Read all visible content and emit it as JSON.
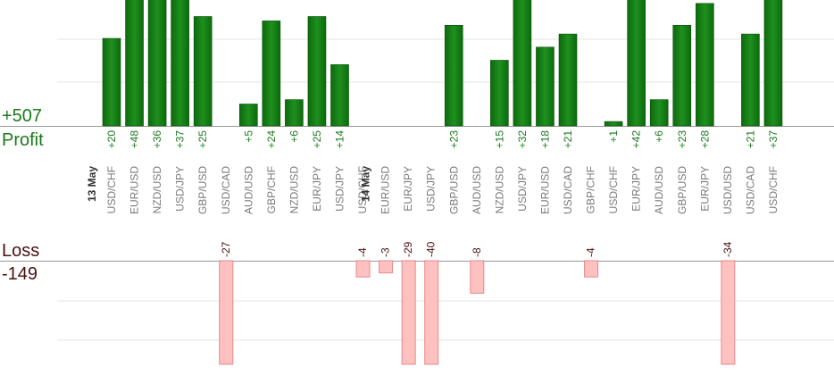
{
  "summary": {
    "profit_total": "+507",
    "profit_label": "Profit",
    "loss_label": "Loss",
    "loss_total": "-149"
  },
  "colors": {
    "profit_bar": "#0b6b0b",
    "profit_bar_light": "#1f8f1f",
    "profit_text": "#1a7a1a",
    "loss_bar": "#ffc0c0",
    "loss_bar_border": "#e58a8a",
    "loss_text": "#4a1010",
    "grid": "#e6e6e6",
    "axis": "#999999",
    "category_text": "#7a7a7a",
    "date_text": "#333333"
  },
  "chart_data": {
    "type": "bar",
    "date_markers": [
      {
        "label": "13 May",
        "before_index": 0
      },
      {
        "label": "14 May",
        "before_index": 12
      }
    ],
    "categories": [
      "USD/CHF",
      "EUR/USD",
      "NZD/USD",
      "USD/JPY",
      "GBP/USD",
      "USD/CAD",
      "AUD/USD",
      "GBP/CHF",
      "NZD/USD",
      "EUR/JPY",
      "USD/JPY",
      "USD/CHF",
      "EUR/USD",
      "EUR/JPY",
      "USD/JPY",
      "GBP/USD",
      "AUD/USD",
      "NZD/USD",
      "USD/JPY",
      "EUR/USD",
      "USD/CAD",
      "GBP/CHF",
      "USD/CHF",
      "EUR/JPY",
      "AUD/USD",
      "GBP/USD",
      "EUR/JPY",
      "USD/USD",
      "USD/CAD",
      "USD/CHF"
    ],
    "series": [
      {
        "values": [
          20,
          48,
          36,
          37,
          25,
          -27,
          5,
          24,
          6,
          25,
          14,
          -4,
          -3,
          -29,
          -40,
          23,
          -8,
          15,
          32,
          18,
          21,
          -4,
          1,
          42,
          6,
          23,
          28,
          -34,
          21,
          37
        ]
      }
    ],
    "profit_ylim": [
      0,
      30
    ],
    "loss_ylim": [
      0,
      25
    ]
  }
}
